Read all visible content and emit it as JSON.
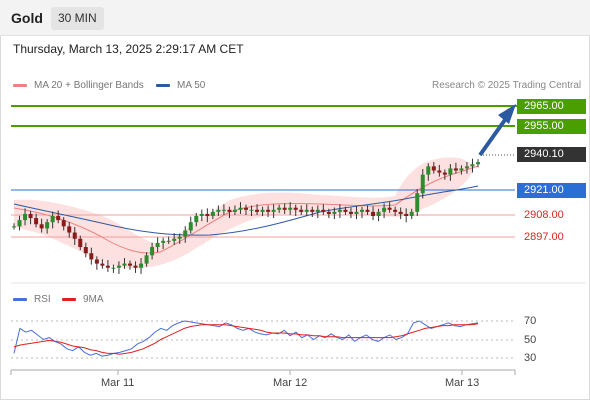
{
  "header": {
    "symbol": "Gold",
    "timeframe": "30 MIN"
  },
  "datetime": "Thursday, March 13, 2025 2:29:17 AM CET",
  "legend": {
    "ma20_bb": {
      "label": "MA 20 + Bollinger Bands",
      "color": "#f08080"
    },
    "ma50": {
      "label": "MA 50",
      "color": "#2c5aa0"
    }
  },
  "source": "Research © 2025 Trading Central",
  "price_levels": {
    "target2": {
      "value": "2965.00",
      "color": "#4a9e00"
    },
    "target1": {
      "value": "2955.00",
      "color": "#4a9e00"
    },
    "last": {
      "value": "2940.10",
      "color": "#333333"
    },
    "pivot": {
      "value": "2921.00",
      "color": "#2b6fd6"
    },
    "support1": {
      "value": "2908.00",
      "color": "#d62828"
    },
    "support2": {
      "value": "2897.00",
      "color": "#d62828"
    }
  },
  "rsi": {
    "rsi_label": "RSI",
    "rsi_color": "#4a6fd6",
    "ma_label": "9MA",
    "ma_color": "#e02020",
    "levels": [
      "70",
      "50",
      "30"
    ]
  },
  "x_axis": [
    "Mar 11",
    "Mar 12",
    "Mar 13"
  ],
  "chart_data": {
    "type": "candlestick",
    "ylim": [
      2885,
      2972
    ],
    "close_series": [
      2909,
      2912,
      2915,
      2913,
      2910,
      2908,
      2911,
      2914,
      2912,
      2909,
      2906,
      2903,
      2899,
      2896,
      2893,
      2891,
      2890,
      2889,
      2889,
      2890,
      2891,
      2890,
      2889,
      2891,
      2895,
      2899,
      2901,
      2902,
      2902,
      2903,
      2904,
      2907,
      2911,
      2914,
      2915,
      2914,
      2916,
      2917,
      2917,
      2916,
      2917,
      2918,
      2917,
      2917,
      2916,
      2917,
      2916,
      2917,
      2918,
      2917,
      2918,
      2917,
      2916,
      2917,
      2916,
      2917,
      2916,
      2915,
      2916,
      2917,
      2916,
      2915,
      2916,
      2917,
      2916,
      2914,
      2916,
      2918,
      2917,
      2916,
      2915,
      2914,
      2916,
      2925,
      2934,
      2938,
      2936,
      2935,
      2934,
      2937,
      2936,
      2937,
      2938,
      2939,
      2940
    ],
    "rsi_series": [
      35,
      62,
      58,
      60,
      55,
      50,
      52,
      48,
      45,
      40,
      38,
      42,
      36,
      33,
      35,
      32,
      33,
      35,
      36,
      38,
      40,
      45,
      48,
      52,
      58,
      62,
      60,
      65,
      68,
      70,
      69,
      68,
      67,
      66,
      65,
      64,
      68,
      66,
      62,
      60,
      62,
      58,
      56,
      55,
      57,
      56,
      60,
      54,
      58,
      52,
      55,
      50,
      54,
      52,
      56,
      52,
      50,
      55,
      48,
      52,
      55,
      50,
      48,
      52,
      55,
      50,
      52,
      56,
      68,
      70,
      66,
      62,
      64,
      66,
      68,
      65,
      64,
      66,
      67,
      68
    ],
    "rsi_ma_series": [
      42,
      44,
      45,
      46,
      47,
      48,
      49,
      48,
      47,
      45,
      43,
      42,
      41,
      39,
      38,
      36,
      35,
      35,
      34,
      35,
      36,
      38,
      40,
      43,
      46,
      50,
      53,
      56,
      59,
      62,
      64,
      65,
      66,
      66,
      66,
      66,
      66,
      65,
      64,
      63,
      62,
      61,
      60,
      58,
      57,
      57,
      57,
      56,
      56,
      55,
      55,
      54,
      54,
      53,
      53,
      53,
      52,
      52,
      52,
      52,
      52,
      52,
      52,
      52,
      52,
      53,
      54,
      56,
      58,
      60,
      62,
      63,
      64,
      65,
      65,
      66,
      66,
      66,
      66,
      67
    ]
  }
}
